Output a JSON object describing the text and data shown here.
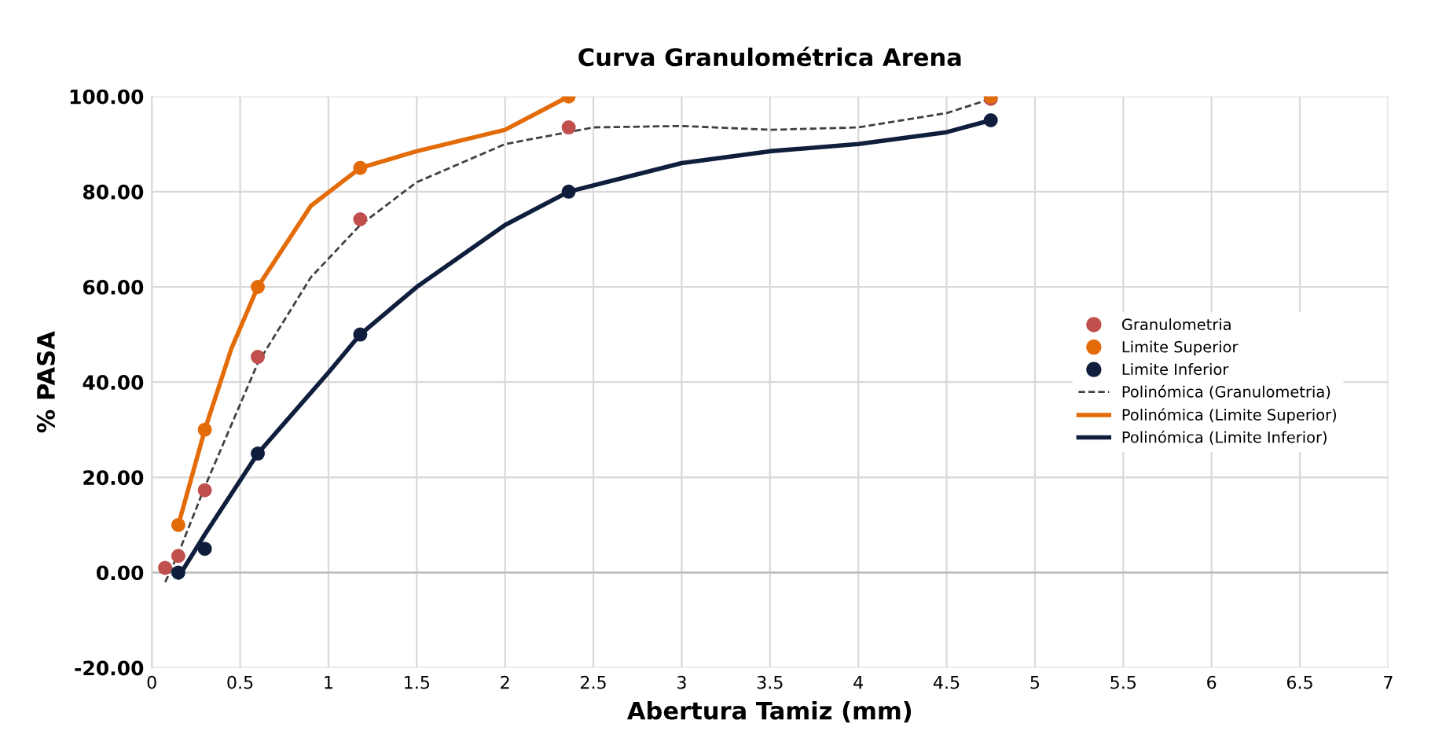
{
  "chart_data": {
    "type": "scatter",
    "title": "Curva Granulométrica Arena",
    "xlabel": "Abertura Tamiz (mm)",
    "ylabel": "% PASA",
    "xlim": [
      0,
      7
    ],
    "xticks": [
      0,
      0.5,
      1,
      1.5,
      2,
      2.5,
      3,
      3.5,
      4,
      4.5,
      5,
      5.5,
      6,
      6.5,
      7
    ],
    "ylim": [
      -20,
      100
    ],
    "yticks": [
      {
        "value": -20,
        "label": "-20.00"
      },
      {
        "value": 0,
        "label": "0.00"
      },
      {
        "value": 20,
        "label": "20.00"
      },
      {
        "value": 40,
        "label": "40.00"
      },
      {
        "value": 60,
        "label": "60.00"
      },
      {
        "value": 80,
        "label": "80.00"
      },
      {
        "value": 100,
        "label": "100.00"
      }
    ],
    "grid": true,
    "legend": "right",
    "marker": "circle",
    "series": [
      {
        "name": "Granulometria",
        "color": "#c0504d",
        "x": [
          0.075,
          0.15,
          0.3,
          0.6,
          1.18,
          2.36,
          4.75
        ],
        "values": [
          1,
          3.5,
          17.3,
          45.3,
          74.2,
          93.5,
          99.5
        ]
      },
      {
        "name": "Limite Superior",
        "color": "#e36c09",
        "x": [
          0.15,
          0.3,
          0.6,
          1.18,
          2.36,
          4.75
        ],
        "values": [
          10,
          30,
          60,
          85,
          100,
          100
        ]
      },
      {
        "name": "Limite Inferior",
        "color": "#0f1e3c",
        "x": [
          0.15,
          0.3,
          0.6,
          1.18,
          2.36,
          4.75
        ],
        "values": [
          0,
          5,
          25,
          50,
          80,
          95
        ]
      },
      {
        "name": "Polinómica (Granulometria)",
        "type": "line",
        "marker": "none",
        "line_style": "dashed",
        "color": "#404040",
        "x": [
          0.076,
          0.15,
          0.3,
          0.6,
          0.9,
          1.18,
          1.5,
          2.0,
          2.5,
          3.0,
          3.5,
          4.0,
          4.5,
          4.75
        ],
        "values": [
          -2,
          4,
          18,
          44,
          62,
          73,
          82,
          90,
          93.5,
          93.8,
          93,
          93.5,
          96.5,
          99.5
        ]
      },
      {
        "name": "Polinómica (Limite Superior)",
        "type": "line",
        "marker": "none",
        "line_style": "solid",
        "color": "#e36c09",
        "x": [
          0.15,
          0.3,
          0.45,
          0.6,
          0.9,
          1.18,
          1.5,
          2.0,
          2.36
        ],
        "values": [
          10,
          30,
          47,
          60,
          77,
          85,
          88.5,
          93,
          100
        ]
      },
      {
        "name": "Polinómica (Limite Inferior)",
        "type": "line",
        "marker": "none",
        "line_style": "solid",
        "color": "#0f1e3c",
        "x": [
          0.15,
          0.3,
          0.6,
          1.0,
          1.18,
          1.5,
          2.0,
          2.36,
          3.0,
          3.5,
          4.0,
          4.5,
          4.75
        ],
        "values": [
          -1,
          8,
          25,
          42,
          50,
          60,
          73,
          80,
          86,
          88.5,
          90,
          92.5,
          95
        ]
      }
    ]
  }
}
